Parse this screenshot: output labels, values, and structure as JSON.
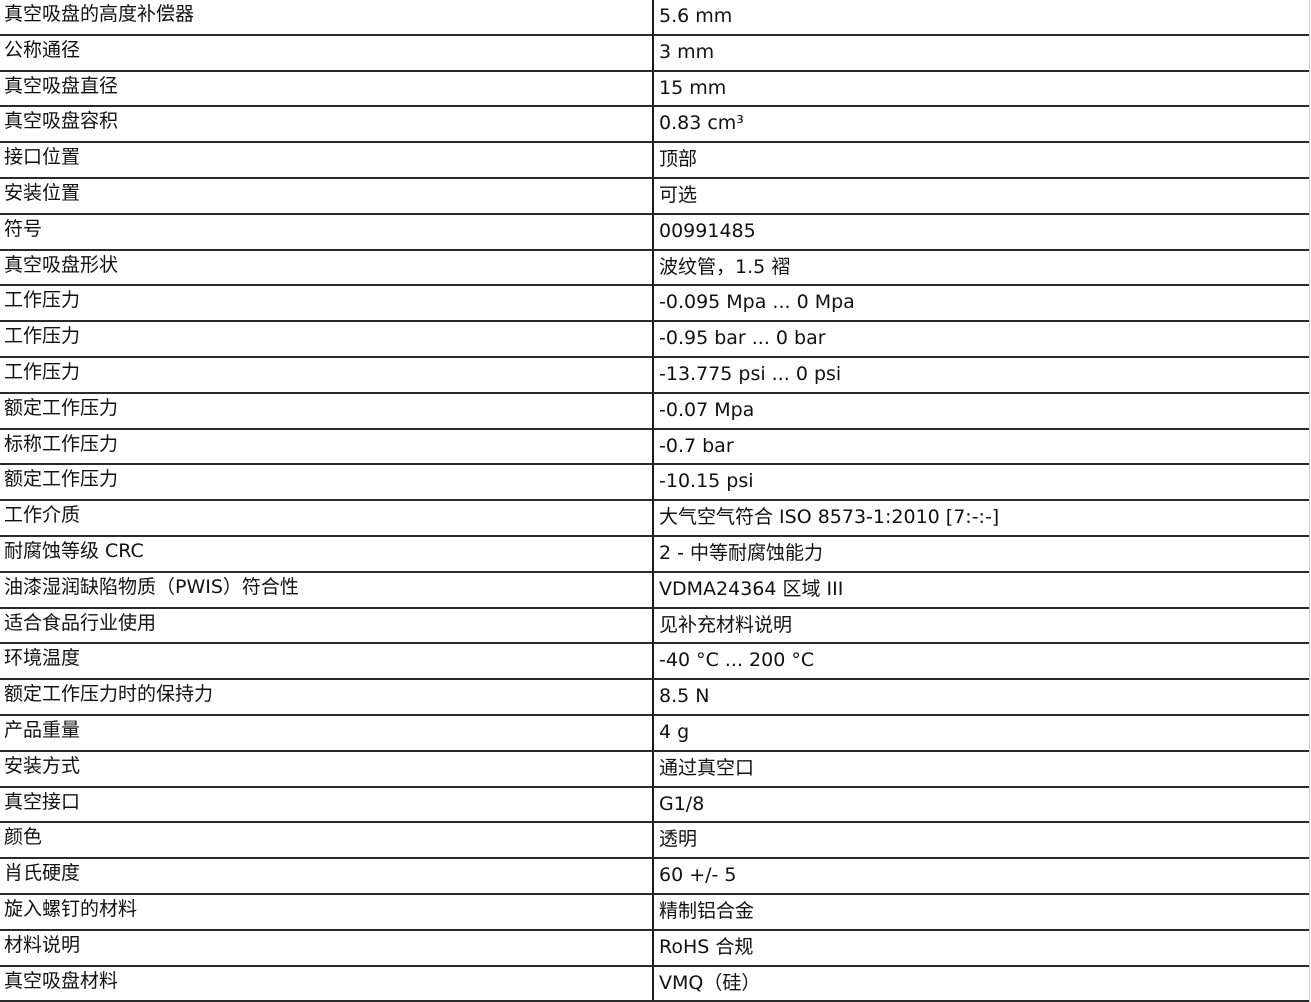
{
  "rows": [
    {
      "label": "真空吸盘的高度补偿器",
      "value": "5.6 mm"
    },
    {
      "label": "公称通径",
      "value": "3 mm"
    },
    {
      "label": "真空吸盘直径",
      "value": "15 mm"
    },
    {
      "label": "真空吸盘容积",
      "value": "0.83 cm³"
    },
    {
      "label": "接口位置",
      "value": "顶部"
    },
    {
      "label": "安装位置",
      "value": "可选"
    },
    {
      "label": "符号",
      "value": "00991485"
    },
    {
      "label": "真空吸盘形状",
      "value": "波纹管，1.5 褶"
    },
    {
      "label": "工作压力",
      "value": "-0.095 Mpa ... 0 Mpa"
    },
    {
      "label": "工作压力",
      "value": "-0.95 bar ... 0 bar"
    },
    {
      "label": "工作压力",
      "value": "-13.775 psi ... 0 psi"
    },
    {
      "label": "额定工作压力",
      "value": "-0.07 Mpa"
    },
    {
      "label": "标称工作压力",
      "value": "-0.7 bar"
    },
    {
      "label": "额定工作压力",
      "value": "-10.15 psi"
    },
    {
      "label": "工作介质",
      "value": "大气空气符合 ISO 8573-1:2010 [7:-:-]"
    },
    {
      "label": "耐腐蚀等级 CRC",
      "value": "2 - 中等耐腐蚀能力"
    },
    {
      "label": "油漆湿润缺陷物质（PWIS）符合性",
      "value": "VDMA24364 区域 III"
    },
    {
      "label": "适合食品行业使用",
      "value": "见补充材料说明"
    },
    {
      "label": "环境温度",
      "value": "-40 °C ... 200 °C"
    },
    {
      "label": "额定工作压力时的保持力",
      "value": "8.5 N"
    },
    {
      "label": "产品重量",
      "value": "4 g"
    },
    {
      "label": "安装方式",
      "value": "通过真空口"
    },
    {
      "label": "真空接口",
      "value": "G1/8"
    },
    {
      "label": "颜色",
      "value": "透明"
    },
    {
      "label": "肖氏硬度",
      "value": "60 +/- 5"
    },
    {
      "label": "旋入螺钉的材料",
      "value": "精制铝合金"
    },
    {
      "label": "材料说明",
      "value": "RoHS 合规"
    },
    {
      "label": "真空吸盘材料",
      "value": "VMQ（硅）"
    }
  ]
}
